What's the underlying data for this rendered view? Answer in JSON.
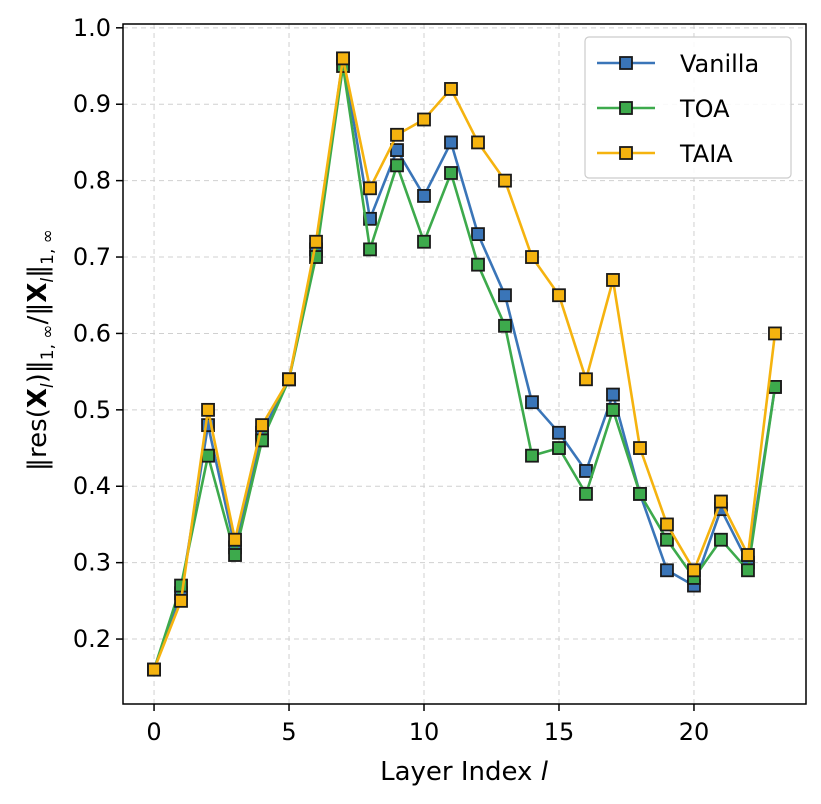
{
  "chart_data": {
    "type": "line",
    "xlabel": "Layer Index",
    "xlabel_italic": "l",
    "ylabel": "‖res(X_l)‖₁,∞/‖X_l‖₁,∞",
    "xlim": [
      -1.15,
      24.15
    ],
    "ylim": [
      0.115,
      1.005
    ],
    "xticks": [
      0,
      5,
      10,
      15,
      20
    ],
    "xtick_labels": [
      "0",
      "5",
      "10",
      "15",
      "20"
    ],
    "yticks": [
      0.2,
      0.3,
      0.4,
      0.5,
      0.6,
      0.7,
      0.8,
      0.9,
      1.0
    ],
    "ytick_labels": [
      "0.2",
      "0.3",
      "0.4",
      "0.5",
      "0.6",
      "0.7",
      "0.8",
      "0.9",
      "1.0"
    ],
    "grid": true,
    "legend_position": "top-right",
    "x": [
      0,
      1,
      2,
      3,
      4,
      5,
      6,
      7,
      8,
      9,
      10,
      11,
      12,
      13,
      14,
      15,
      16,
      17,
      18,
      19,
      20,
      21,
      22,
      23
    ],
    "series": [
      {
        "name": "Vanilla",
        "color": "#3a75b8",
        "values": [
          0.16,
          0.26,
          0.48,
          0.32,
          0.47,
          0.54,
          0.71,
          0.96,
          0.75,
          0.84,
          0.78,
          0.85,
          0.73,
          0.65,
          0.51,
          0.47,
          0.42,
          0.52,
          0.39,
          0.29,
          0.27,
          0.37,
          0.3,
          0.53
        ]
      },
      {
        "name": "TOA",
        "color": "#3daa4c",
        "values": [
          0.16,
          0.27,
          0.44,
          0.31,
          0.46,
          0.54,
          0.7,
          0.95,
          0.71,
          0.82,
          0.72,
          0.81,
          0.69,
          0.61,
          0.44,
          0.45,
          0.39,
          0.5,
          0.39,
          0.33,
          0.28,
          0.33,
          0.29,
          0.53
        ]
      },
      {
        "name": "TAIA",
        "color": "#f5b30f",
        "values": [
          0.16,
          0.25,
          0.5,
          0.33,
          0.48,
          0.54,
          0.72,
          0.96,
          0.79,
          0.86,
          0.88,
          0.92,
          0.85,
          0.8,
          0.7,
          0.65,
          0.54,
          0.67,
          0.45,
          0.35,
          0.29,
          0.38,
          0.31,
          0.6
        ]
      }
    ]
  }
}
